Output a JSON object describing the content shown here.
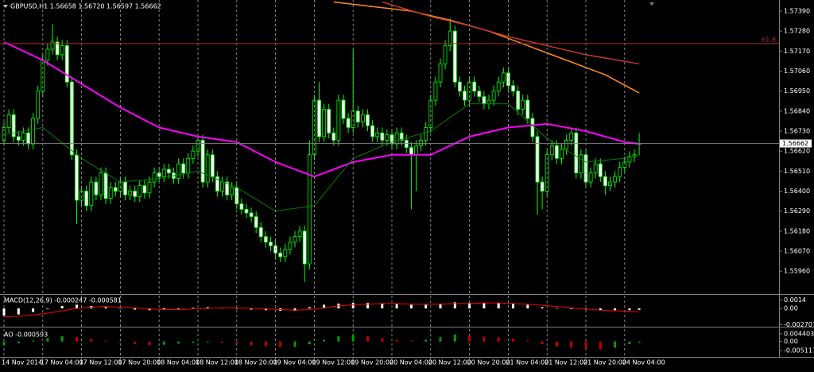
{
  "chart_data": {
    "type": "candlestick",
    "title": "GBPUSD,H1  1.56658 1.56720 1.56597 1.56662",
    "categories": [
      "14 Nov 2014",
      null,
      null,
      null,
      null,
      null,
      null,
      null,
      "17 Nov 04:00",
      null,
      null,
      null,
      null,
      null,
      null,
      null,
      "17 Nov 12:00",
      null,
      null,
      null,
      null,
      null,
      null,
      null,
      "17 Nov 20:00",
      null,
      null,
      null,
      null,
      null,
      null,
      null,
      "18 Nov 04:00",
      null,
      null,
      null,
      null,
      null,
      null,
      null,
      "18 Nov 12:00",
      null,
      null,
      null,
      null,
      null,
      null,
      null,
      "18 Nov 20:00",
      null,
      null,
      null,
      null,
      null,
      null,
      null,
      "19 Nov 04:00",
      null,
      null,
      null,
      null,
      null,
      null,
      null,
      "19 Nov 12:00",
      null,
      null,
      null,
      null,
      null,
      null,
      null,
      "19 Nov 20:00",
      null,
      null,
      null,
      null,
      null,
      null,
      null,
      "20 Nov 04:00",
      null,
      null,
      null,
      null,
      null,
      null,
      null,
      "20 Nov 12:00",
      null,
      null,
      null,
      null,
      null,
      null,
      null,
      "20 Nov 20:00",
      null,
      null,
      null,
      null,
      null,
      null,
      null,
      "21 Nov 04:00",
      null,
      null,
      null,
      null,
      null,
      null,
      null,
      "21 Nov 12:00",
      null,
      null,
      null,
      null,
      null,
      null,
      null,
      "21 Nov 20:00",
      null,
      null,
      null,
      null,
      null,
      null,
      null,
      "24 Nov 04:00",
      null,
      null,
      null
    ],
    "ohlc": [
      [
        1.5668,
        1.5678,
        1.5665,
        1.5675
      ],
      [
        1.5675,
        1.5685,
        1.5672,
        1.5682
      ],
      [
        1.5682,
        1.5685,
        1.5667,
        1.567
      ],
      [
        1.567,
        1.5673,
        1.5665,
        1.5668
      ],
      [
        1.5668,
        1.5675,
        1.5665,
        1.5672
      ],
      [
        1.5672,
        1.5675,
        1.5663,
        1.5666
      ],
      [
        1.5666,
        1.5683,
        1.5663,
        1.568
      ],
      [
        1.568,
        1.5698,
        1.5677,
        1.5695
      ],
      [
        1.5695,
        1.5715,
        1.5692,
        1.5712
      ],
      [
        1.5712,
        1.5721,
        1.5709,
        1.5718
      ],
      [
        1.5718,
        1.5732,
        1.5715,
        1.5722
      ],
      [
        1.5722,
        1.5725,
        1.5712,
        1.5715
      ],
      [
        1.5715,
        1.5723,
        1.5712,
        1.572
      ],
      [
        1.572,
        1.5723,
        1.5697,
        1.57
      ],
      [
        1.57,
        1.5703,
        1.5657,
        1.566
      ],
      [
        1.566,
        1.5663,
        1.5622,
        1.5635
      ],
      [
        1.5635,
        1.5643,
        1.5632,
        1.564
      ],
      [
        1.564,
        1.5643,
        1.5629,
        1.5632
      ],
      [
        1.5632,
        1.5648,
        1.5629,
        1.5645
      ],
      [
        1.5645,
        1.5648,
        1.5635,
        1.5638
      ],
      [
        1.5638,
        1.5653,
        1.5635,
        1.565
      ],
      [
        1.565,
        1.5653,
        1.5633,
        1.5636
      ],
      [
        1.5636,
        1.5645,
        1.5633,
        1.5642
      ],
      [
        1.5642,
        1.5645,
        1.5637,
        1.564
      ],
      [
        1.564,
        1.5648,
        1.5637,
        1.5645
      ],
      [
        1.5645,
        1.5648,
        1.5635,
        1.5638
      ],
      [
        1.5638,
        1.5643,
        1.5635,
        1.564
      ],
      [
        1.564,
        1.5643,
        1.5634,
        1.5637
      ],
      [
        1.5637,
        1.5646,
        1.5634,
        1.5643
      ],
      [
        1.5643,
        1.5646,
        1.5636,
        1.5639
      ],
      [
        1.5639,
        1.5648,
        1.5636,
        1.5645
      ],
      [
        1.5645,
        1.5653,
        1.5642,
        1.565
      ],
      [
        1.565,
        1.5653,
        1.5645,
        1.5648
      ],
      [
        1.5648,
        1.5655,
        1.5645,
        1.5652
      ],
      [
        1.5652,
        1.5655,
        1.5647,
        1.565
      ],
      [
        1.565,
        1.5653,
        1.5644,
        1.5647
      ],
      [
        1.5647,
        1.5658,
        1.5644,
        1.5655
      ],
      [
        1.5655,
        1.5658,
        1.5647,
        1.565
      ],
      [
        1.565,
        1.5661,
        1.5647,
        1.5658
      ],
      [
        1.5658,
        1.5665,
        1.5655,
        1.5662
      ],
      [
        1.5662,
        1.5671,
        1.5659,
        1.5668
      ],
      [
        1.5668,
        1.5671,
        1.5642,
        1.5645
      ],
      [
        1.5645,
        1.5663,
        1.5642,
        1.566
      ],
      [
        1.566,
        1.5663,
        1.5645,
        1.5648
      ],
      [
        1.5648,
        1.5651,
        1.5637,
        1.564
      ],
      [
        1.564,
        1.5648,
        1.5637,
        1.5645
      ],
      [
        1.5645,
        1.5648,
        1.5635,
        1.5638
      ],
      [
        1.5638,
        1.5645,
        1.5635,
        1.5642
      ],
      [
        1.5642,
        1.5645,
        1.563,
        1.5633
      ],
      [
        1.5633,
        1.5636,
        1.5627,
        1.563
      ],
      [
        1.563,
        1.5633,
        1.5625,
        1.5628
      ],
      [
        1.5628,
        1.5631,
        1.5623,
        1.5626
      ],
      [
        1.5626,
        1.5629,
        1.5617,
        1.562
      ],
      [
        1.562,
        1.5623,
        1.5612,
        1.5615
      ],
      [
        1.5615,
        1.5618,
        1.5609,
        1.5612
      ],
      [
        1.5612,
        1.5615,
        1.5607,
        1.561
      ],
      [
        1.561,
        1.5613,
        1.5603,
        1.5606
      ],
      [
        1.5606,
        1.5609,
        1.5601,
        1.5604
      ],
      [
        1.5604,
        1.5611,
        1.5601,
        1.5608
      ],
      [
        1.5608,
        1.5615,
        1.5605,
        1.5612
      ],
      [
        1.5612,
        1.5618,
        1.5609,
        1.5615
      ],
      [
        1.5615,
        1.5621,
        1.5612,
        1.5618
      ],
      [
        1.5618,
        1.5621,
        1.559,
        1.56
      ],
      [
        1.56,
        1.5668,
        1.5597,
        1.566
      ],
      [
        1.566,
        1.5693,
        1.5657,
        1.569
      ],
      [
        1.569,
        1.57,
        1.5667,
        1.567
      ],
      [
        1.567,
        1.5688,
        1.5667,
        1.5685
      ],
      [
        1.5685,
        1.5688,
        1.5669,
        1.5672
      ],
      [
        1.5672,
        1.5675,
        1.5665,
        1.5668
      ],
      [
        1.5668,
        1.5693,
        1.5665,
        1.569
      ],
      [
        1.569,
        1.5693,
        1.5677,
        1.568
      ],
      [
        1.568,
        1.5683,
        1.5672,
        1.5675
      ],
      [
        1.5675,
        1.5718,
        1.5672,
        1.5684
      ],
      [
        1.5684,
        1.5687,
        1.5675,
        1.5678
      ],
      [
        1.5678,
        1.5685,
        1.5675,
        1.5682
      ],
      [
        1.5682,
        1.5685,
        1.5673,
        1.5676
      ],
      [
        1.5676,
        1.5679,
        1.5667,
        1.567
      ],
      [
        1.567,
        1.5675,
        1.5667,
        1.5672
      ],
      [
        1.5672,
        1.5675,
        1.5665,
        1.5668
      ],
      [
        1.5668,
        1.5674,
        1.5665,
        1.5671
      ],
      [
        1.5671,
        1.5674,
        1.5663,
        1.5666
      ],
      [
        1.5666,
        1.5675,
        1.5663,
        1.5672
      ],
      [
        1.5672,
        1.5675,
        1.5665,
        1.5668
      ],
      [
        1.5668,
        1.5671,
        1.5661,
        1.5664
      ],
      [
        1.5664,
        1.5667,
        1.563,
        1.566
      ],
      [
        1.566,
        1.5668,
        1.564,
        1.5665
      ],
      [
        1.5665,
        1.5671,
        1.5662,
        1.5668
      ],
      [
        1.5668,
        1.5678,
        1.5665,
        1.5675
      ],
      [
        1.5675,
        1.5693,
        1.5672,
        1.569
      ],
      [
        1.569,
        1.5703,
        1.5687,
        1.57
      ],
      [
        1.57,
        1.5713,
        1.5697,
        1.571
      ],
      [
        1.571,
        1.5723,
        1.5707,
        1.572
      ],
      [
        1.572,
        1.5735,
        1.5717,
        1.5728
      ],
      [
        1.5728,
        1.5731,
        1.5697,
        1.57
      ],
      [
        1.57,
        1.5703,
        1.5692,
        1.5695
      ],
      [
        1.5695,
        1.5698,
        1.5687,
        1.569
      ],
      [
        1.569,
        1.5703,
        1.5687,
        1.57
      ],
      [
        1.57,
        1.5703,
        1.5692,
        1.5695
      ],
      [
        1.5695,
        1.5698,
        1.5689,
        1.5692
      ],
      [
        1.5692,
        1.5695,
        1.5685,
        1.5688
      ],
      [
        1.5688,
        1.5693,
        1.5685,
        1.569
      ],
      [
        1.569,
        1.5698,
        1.5687,
        1.5695
      ],
      [
        1.5695,
        1.5703,
        1.5692,
        1.57
      ],
      [
        1.57,
        1.5708,
        1.5697,
        1.5705
      ],
      [
        1.5705,
        1.5708,
        1.5695,
        1.5698
      ],
      [
        1.5698,
        1.5701,
        1.5692,
        1.5695
      ],
      [
        1.5695,
        1.5698,
        1.5682,
        1.5685
      ],
      [
        1.5685,
        1.5693,
        1.5682,
        1.569
      ],
      [
        1.569,
        1.5693,
        1.5677,
        1.568
      ],
      [
        1.568,
        1.5683,
        1.5667,
        1.567
      ],
      [
        1.567,
        1.5673,
        1.5627,
        1.5645
      ],
      [
        1.5645,
        1.5648,
        1.563,
        1.564
      ],
      [
        1.564,
        1.5663,
        1.5637,
        1.566
      ],
      [
        1.566,
        1.5668,
        1.5657,
        1.5665
      ],
      [
        1.5665,
        1.5668,
        1.5655,
        1.5658
      ],
      [
        1.5658,
        1.5666,
        1.5655,
        1.5663
      ],
      [
        1.5663,
        1.5671,
        1.566,
        1.5668
      ],
      [
        1.5668,
        1.5675,
        1.5665,
        1.5672
      ],
      [
        1.5672,
        1.5675,
        1.5647,
        1.565
      ],
      [
        1.565,
        1.5663,
        1.5647,
        1.566
      ],
      [
        1.566,
        1.5663,
        1.5642,
        1.5645
      ],
      [
        1.5645,
        1.5653,
        1.5642,
        1.565
      ],
      [
        1.565,
        1.5658,
        1.5647,
        1.5655
      ],
      [
        1.5655,
        1.5658,
        1.5645,
        1.5648
      ],
      [
        1.5648,
        1.5651,
        1.5638,
        1.5643
      ],
      [
        1.5643,
        1.5648,
        1.564,
        1.5645
      ],
      [
        1.5645,
        1.5651,
        1.5642,
        1.5648
      ],
      [
        1.5648,
        1.5656,
        1.5645,
        1.5653
      ],
      [
        1.5653,
        1.5659,
        1.565,
        1.5656
      ],
      [
        1.5656,
        1.5662,
        1.5653,
        1.5659
      ],
      [
        1.5659,
        1.5663,
        1.5656,
        1.566
      ],
      [
        1.56658,
        1.5672,
        1.56597,
        1.56662
      ]
    ],
    "bull_color": "#000000",
    "bear_color": "#ffffff",
    "wick_color": "#00ff00",
    "ylim": [
      1.55834,
      1.57451
    ],
    "yticks": [
      {
        "value": 1.5739,
        "label": "1.57390"
      },
      {
        "value": 1.5728,
        "label": "1.57280"
      },
      {
        "value": 1.5717,
        "label": "1.57170"
      },
      {
        "value": 1.5706,
        "label": "1.57060"
      },
      {
        "value": 1.5695,
        "label": "1.56950"
      },
      {
        "value": 1.5684,
        "label": "1.56840"
      },
      {
        "value": 1.5673,
        "label": "1.56730"
      },
      {
        "value": 1.5662,
        "label": "1.56620"
      },
      {
        "value": 1.5651,
        "label": "1.56510"
      },
      {
        "value": 1.564,
        "label": "1.56400"
      },
      {
        "value": 1.5629,
        "label": "1.56290"
      },
      {
        "value": 1.5618,
        "label": "1.56180"
      },
      {
        "value": 1.5607,
        "label": "1.56070"
      },
      {
        "value": 1.5596,
        "label": "1.55960"
      }
    ],
    "grid": true,
    "current_price": 1.56662,
    "levels": [
      {
        "label": "61.8",
        "value": 1.57211,
        "color": "#a52a2a"
      }
    ],
    "series": [
      {
        "color": "#ff00ff",
        "x": [
          0,
          8,
          16,
          24,
          32,
          40,
          48,
          56,
          64,
          72,
          80,
          88,
          96,
          104,
          112,
          120,
          128,
          131
        ],
        "values": [
          1.5722,
          1.5712,
          1.5699,
          1.5686,
          1.5675,
          1.567,
          1.5667,
          1.5656,
          1.5648,
          1.5656,
          1.566,
          1.566,
          1.567,
          1.5675,
          1.5677,
          1.5673,
          1.5667,
          1.5666
        ]
      },
      {
        "color": "#008000",
        "x": [
          0,
          8,
          16,
          24,
          32,
          40,
          48,
          56,
          64,
          72,
          80,
          88,
          96,
          104,
          112,
          120,
          128,
          131
        ],
        "values": [
          1.5671,
          1.5675,
          1.5658,
          1.5645,
          1.5647,
          1.5651,
          1.5642,
          1.5629,
          1.5632,
          1.5658,
          1.5667,
          1.5673,
          1.5688,
          1.5688,
          1.5669,
          1.5656,
          1.5658,
          1.566
        ]
      },
      {
        "color": "#ff8c1a",
        "x": [
          68,
          84,
          92,
          100,
          108,
          116,
          124,
          131
        ],
        "values": [
          1.5744,
          1.5739,
          1.5734,
          1.5728,
          1.572,
          1.5712,
          1.5704,
          1.5694
        ]
      },
      {
        "color": "#c0392b",
        "x": [
          78,
          88,
          96,
          104,
          112,
          120,
          131
        ],
        "values": [
          1.5744,
          1.5736,
          1.5731,
          1.5725,
          1.572,
          1.5715,
          1.571
        ]
      }
    ],
    "macd": {
      "label": "MACD(12,26,9) -0.000247 -0.000581",
      "ylim": [
        -0.0029,
        0.0021
      ],
      "yticks": [
        0.0014,
        {
          "value": 0,
          "label": "0.00"
        },
        -0.002707
      ],
      "x": [
        0,
        3,
        6,
        9,
        12,
        15,
        18,
        21,
        24,
        27,
        30,
        33,
        36,
        39,
        42,
        45,
        48,
        51,
        54,
        57,
        60,
        63,
        66,
        69,
        72,
        75,
        78,
        81,
        84,
        87,
        90,
        93,
        96,
        99,
        102,
        105,
        108,
        111,
        114,
        117,
        120,
        123,
        126,
        129,
        131
      ],
      "histogram": [
        -0.0012,
        -0.001,
        -0.0006,
        -0.0001,
        0.0004,
        0.0006,
        0.0004,
        0.0002,
        0,
        -0.0002,
        -0.0003,
        -0.0002,
        -0.0001,
        0.0001,
        0.0002,
        0.0001,
        0,
        -0.0002,
        -0.0003,
        -0.0004,
        -0.0004,
        0.0002,
        0.0006,
        0.0008,
        0.0009,
        0.0009,
        0.0008,
        0.0007,
        0.0006,
        0.0006,
        0.0008,
        0.001,
        0.0009,
        0.0009,
        0.0009,
        0.0008,
        0.0006,
        0.0002,
        0,
        -0.0001,
        -0.0002,
        -0.0003,
        -0.0003,
        -0.0003,
        -0.000247
      ],
      "signal": [
        -0.0014,
        -0.0013,
        -0.0011,
        -0.0008,
        -0.0004,
        0,
        0.0002,
        0.0003,
        0.0002,
        0.0001,
        -0.0001,
        -0.0002,
        -0.0002,
        -0.0001,
        0,
        0.0001,
        0.0001,
        0,
        -0.0001,
        -0.0002,
        -0.0003,
        -0.0002,
        0.0001,
        0.0004,
        0.0006,
        0.0007,
        0.0008,
        0.0008,
        0.0007,
        0.0007,
        0.0007,
        0.0008,
        0.0008,
        0.0009,
        0.0009,
        0.0008,
        0.0007,
        0.0005,
        0.0003,
        0.0001,
        -0.0001,
        -0.0003,
        -0.0004,
        -0.0005,
        -0.000581
      ],
      "histogram_color": "#ffffff",
      "signal_color": "#ff0000"
    },
    "ao": {
      "label": "AO -0.000593",
      "ylim": [
        -0.0083,
        0.0071
      ],
      "yticks": [
        0.004403,
        {
          "value": 0,
          "label": "0.00"
        },
        -0.005117
      ],
      "x": [
        0,
        3,
        6,
        9,
        12,
        15,
        18,
        21,
        24,
        27,
        30,
        33,
        36,
        39,
        42,
        45,
        48,
        51,
        54,
        57,
        60,
        63,
        66,
        69,
        72,
        75,
        78,
        81,
        84,
        87,
        90,
        93,
        96,
        99,
        102,
        105,
        108,
        111,
        114,
        117,
        120,
        123,
        126,
        129,
        131
      ],
      "values": [
        -0.002,
        -0.001,
        0.0005,
        0.002,
        0.003,
        0.0025,
        0.0015,
        0.0005,
        -0.0005,
        -0.0015,
        -0.002,
        -0.0018,
        -0.0012,
        -0.0008,
        -0.0005,
        -0.0008,
        -0.0012,
        -0.002,
        -0.0028,
        -0.0032,
        -0.003,
        -0.0015,
        0.001,
        0.003,
        0.0038,
        0.003,
        0.002,
        0.001,
        0.0005,
        0.001,
        0.0025,
        0.004,
        0.0035,
        0.0028,
        0.0025,
        0.0015,
        0.0005,
        -0.0015,
        -0.003,
        -0.0035,
        -0.004,
        -0.0045,
        -0.0035,
        -0.0015,
        -0.000593
      ],
      "up_color": "#00a000",
      "down_color": "#c00000"
    }
  }
}
